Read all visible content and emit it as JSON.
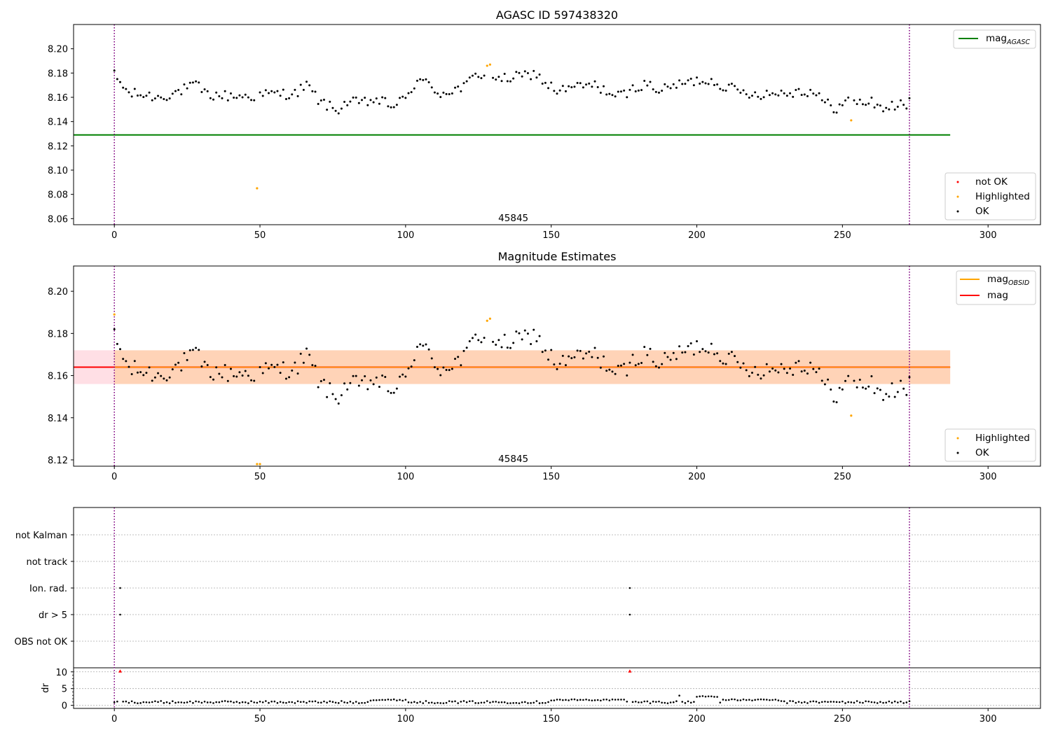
{
  "chart_data": [
    {
      "type": "scatter",
      "title": "AGASC ID 597438320",
      "xlim": [
        -14,
        318
      ],
      "ylim": [
        8.055,
        8.22
      ],
      "xticks": [
        0,
        50,
        100,
        150,
        200,
        250,
        300
      ],
      "yticks": [
        8.06,
        8.08,
        8.1,
        8.12,
        8.14,
        8.16,
        8.18,
        8.2
      ],
      "vlines": [
        0,
        273
      ],
      "annotation": {
        "x": 137,
        "y": 8.058,
        "text": "45845"
      },
      "hline": {
        "name": "mag",
        "sub": "AGASC",
        "y": 8.129,
        "x0": -14,
        "x1": 287,
        "color": "#008000"
      },
      "highlighted": [
        [
          128,
          8.186
        ],
        [
          129,
          8.187
        ],
        [
          49,
          8.085
        ],
        [
          253,
          8.141
        ]
      ],
      "not_ok": [],
      "legend_top": [
        {
          "label": "mag",
          "sub": "AGASC",
          "color": "#008000"
        }
      ],
      "legend_bottom": [
        {
          "label": "not OK",
          "color": "#ff0000"
        },
        {
          "label": "Highlighted",
          "color": "#ffa500"
        },
        {
          "label": "OK",
          "color": "#000000"
        }
      ]
    },
    {
      "type": "scatter",
      "title": "Magnitude Estimates",
      "xlim": [
        -14,
        318
      ],
      "ylim": [
        8.117,
        8.212
      ],
      "xticks": [
        0,
        50,
        100,
        150,
        200,
        250,
        300
      ],
      "yticks": [
        8.12,
        8.14,
        8.16,
        8.18,
        8.2
      ],
      "vlines": [
        0,
        273
      ],
      "annotation": {
        "x": 137,
        "y": 8.119,
        "text": "45845"
      },
      "mag_line": {
        "y": 8.164,
        "x0": -14,
        "x1": 287,
        "color": "#ff0000"
      },
      "mag_band": {
        "y0": 8.156,
        "y1": 8.172,
        "color": "#ffc0cb"
      },
      "obsid_band": {
        "y0": 8.156,
        "y1": 8.172,
        "x0": 0,
        "x1": 287,
        "color": "#ffa500"
      },
      "highlighted": [
        [
          0,
          8.189
        ],
        [
          128,
          8.186
        ],
        [
          129,
          8.187
        ],
        [
          49,
          8.118
        ],
        [
          50,
          8.118
        ],
        [
          253,
          8.141
        ]
      ],
      "legend_top": [
        {
          "label": "mag",
          "sub": "OBSID",
          "color": "#ffa500"
        },
        {
          "label": "mag",
          "sub": "",
          "color": "#ff0000"
        }
      ],
      "legend_bottom": [
        {
          "label": "Highlighted",
          "color": "#ffa500"
        },
        {
          "label": "OK",
          "color": "#000000"
        }
      ]
    },
    {
      "type": "scatter",
      "title": "",
      "xlim": [
        -14,
        318
      ],
      "xticks": [
        0,
        50,
        100,
        150,
        200,
        250,
        300
      ],
      "vlines": [
        0,
        273
      ],
      "flag_rows": [
        "not Kalman",
        "not track",
        "Ion. rad.",
        "dr > 5",
        "OBS not OK"
      ],
      "flag_points": [
        {
          "row": "Ion. rad.",
          "x": [
            2,
            177
          ]
        },
        {
          "row": "dr > 5",
          "x": [
            2,
            177
          ]
        }
      ],
      "dr_axis": {
        "ylabel": "dr",
        "ylim": [
          -0.5,
          11
        ],
        "yticks": [
          0,
          5,
          10
        ]
      },
      "dr_outliers": [
        [
          2,
          10
        ],
        [
          177,
          10
        ]
      ]
    }
  ]
}
